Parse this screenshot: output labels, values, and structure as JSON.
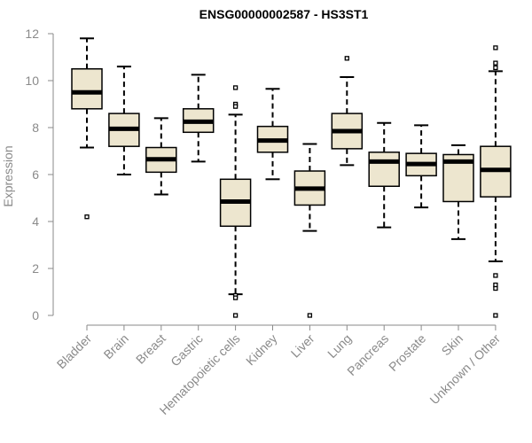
{
  "chart_data": {
    "type": "boxplot",
    "title": "ENSG00000002587 - HS3ST1",
    "xlabel": "",
    "ylabel": "Expression",
    "ylim": [
      0,
      12
    ],
    "yticks": [
      0,
      2,
      4,
      6,
      8,
      10,
      12
    ],
    "grid": false,
    "colors": {
      "box_fill": "#ede6cf",
      "box_stroke": "#000000",
      "axis": "#8a8a8a",
      "label": "#8a8a8a"
    },
    "categories": [
      "Bladder",
      "Brain",
      "Breast",
      "Gastric",
      "Hematopoietic cells",
      "Kidney",
      "Liver",
      "Lung",
      "Pancreas",
      "Prostate",
      "Skin",
      "Unknown / Other"
    ],
    "boxes": [
      {
        "label": "Bladder",
        "whisker_low": 7.15,
        "q1": 8.8,
        "median": 9.5,
        "q3": 10.5,
        "whisker_high": 11.8,
        "outliers": [
          4.2
        ]
      },
      {
        "label": "Brain",
        "whisker_low": 6.0,
        "q1": 7.2,
        "median": 7.95,
        "q3": 8.6,
        "whisker_high": 10.6,
        "outliers": []
      },
      {
        "label": "Breast",
        "whisker_low": 5.15,
        "q1": 6.1,
        "median": 6.65,
        "q3": 7.15,
        "whisker_high": 8.4,
        "outliers": []
      },
      {
        "label": "Gastric",
        "whisker_low": 6.55,
        "q1": 7.8,
        "median": 8.25,
        "q3": 8.8,
        "whisker_high": 10.25,
        "outliers": []
      },
      {
        "label": "Hematopoietic cells",
        "whisker_low": 0.9,
        "q1": 3.8,
        "median": 4.85,
        "q3": 5.8,
        "whisker_high": 8.55,
        "outliers": [
          9.7,
          9.0,
          8.9,
          0.85,
          0.75,
          0.0
        ]
      },
      {
        "label": "Kidney",
        "whisker_low": 5.8,
        "q1": 6.95,
        "median": 7.45,
        "q3": 8.05,
        "whisker_high": 9.65,
        "outliers": []
      },
      {
        "label": "Liver",
        "whisker_low": 3.6,
        "q1": 4.7,
        "median": 5.4,
        "q3": 6.15,
        "whisker_high": 7.3,
        "outliers": [
          0.0
        ]
      },
      {
        "label": "Lung",
        "whisker_low": 6.4,
        "q1": 7.1,
        "median": 7.85,
        "q3": 8.6,
        "whisker_high": 10.15,
        "outliers": [
          10.95
        ]
      },
      {
        "label": "Pancreas",
        "whisker_low": 3.75,
        "q1": 5.5,
        "median": 6.55,
        "q3": 6.95,
        "whisker_high": 8.2,
        "outliers": []
      },
      {
        "label": "Prostate",
        "whisker_low": 4.6,
        "q1": 5.95,
        "median": 6.45,
        "q3": 6.9,
        "whisker_high": 8.1,
        "outliers": []
      },
      {
        "label": "Skin",
        "whisker_low": 3.25,
        "q1": 4.85,
        "median": 6.55,
        "q3": 6.85,
        "whisker_high": 7.25,
        "outliers": []
      },
      {
        "label": "Unknown / Other",
        "whisker_low": 2.3,
        "q1": 5.05,
        "median": 6.2,
        "q3": 7.2,
        "whisker_high": 10.4,
        "outliers": [
          11.4,
          10.75,
          10.55,
          1.7,
          1.3,
          1.15,
          0.0
        ]
      }
    ]
  }
}
